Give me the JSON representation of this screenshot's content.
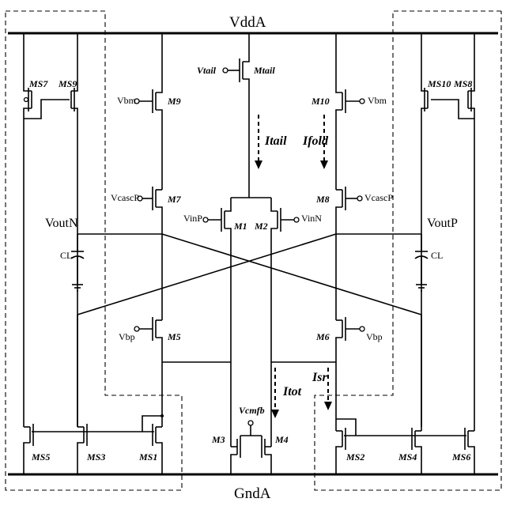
{
  "rails": {
    "vdd": "VddA",
    "gnd": "GndA"
  },
  "transistors": {
    "ms7": "MS7",
    "ms9": "MS9",
    "ms10": "MS10",
    "ms8": "MS8",
    "m9": "M9",
    "m10": "M10",
    "m7": "M7",
    "m8": "M8",
    "mtail": "Mtail",
    "m1": "M1",
    "m2": "M2",
    "m5": "M5",
    "m6": "M6",
    "m3": "M3",
    "m4": "M4",
    "ms5": "MS5",
    "ms3": "MS3",
    "ms1": "MS1",
    "ms2": "MS2",
    "ms4": "MS4",
    "ms6": "MS6"
  },
  "bias": {
    "vtail": "Vtail",
    "vbm_left": "Vbm",
    "vbm_right": "Vbm",
    "vcascp_left": "VcascP",
    "vcascp_right": "VcascP",
    "vinp": "VinP",
    "vinn": "VinN",
    "vbp_left": "Vbp",
    "vbp_right": "Vbp",
    "vcmfb": "Vcmfb"
  },
  "outputs": {
    "voutn": "VoutN",
    "voutp": "VoutP",
    "cl_left": "CL",
    "cl_right": "CL"
  },
  "currents": {
    "itail": "Itail",
    "ifold": "Ifold",
    "itot": "Itot",
    "isr": "Isr"
  }
}
